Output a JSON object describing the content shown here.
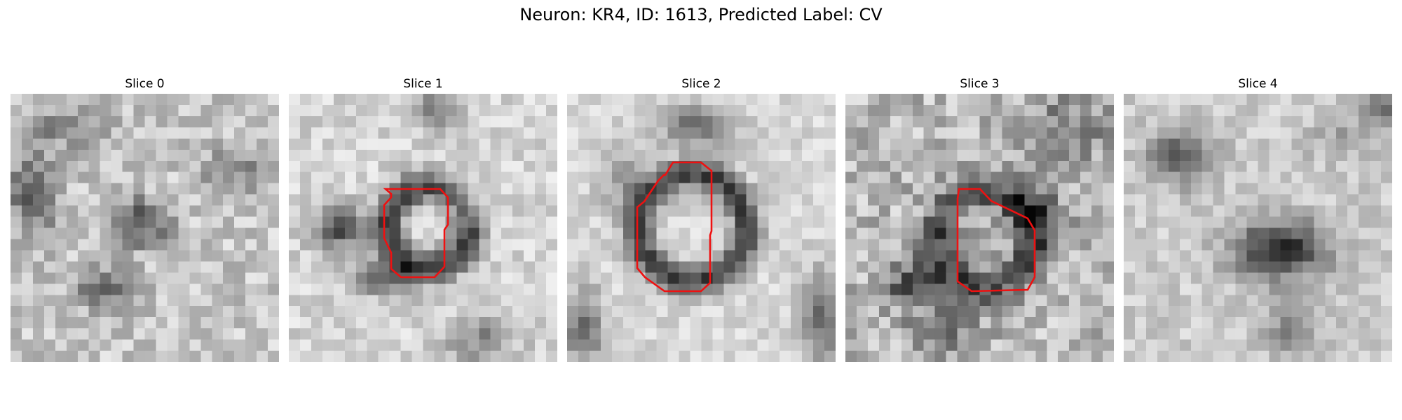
{
  "figure": {
    "title": "Neuron: KR4, ID: 1613, Predicted Label: CV",
    "contour_color": "#ee1111",
    "colormap": "grayscale"
  },
  "slices": [
    {
      "title": "Slice 0",
      "has_contour": false
    },
    {
      "title": "Slice 1",
      "has_contour": true
    },
    {
      "title": "Slice 2",
      "has_contour": true
    },
    {
      "title": "Slice 3",
      "has_contour": true
    },
    {
      "title": "Slice 4",
      "has_contour": false
    }
  ]
}
